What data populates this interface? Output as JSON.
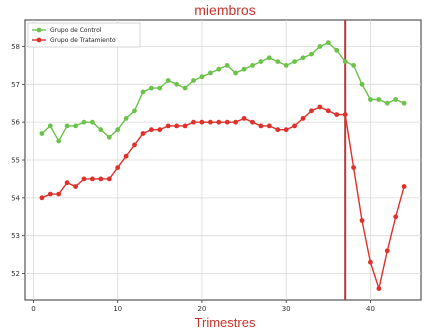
{
  "chart_data": {
    "type": "line",
    "title": "miembros",
    "xlabel": "Trimestres",
    "ylabel": "",
    "xlim": [
      -1,
      46
    ],
    "ylim": [
      51.3,
      58.7
    ],
    "xticks": [
      0,
      10,
      20,
      30,
      40
    ],
    "xtick_labels": [
      "0",
      "10",
      "20",
      "30",
      "40"
    ],
    "yticks": [
      52,
      53,
      54,
      55,
      56,
      57,
      58
    ],
    "ytick_labels": [
      "52",
      "53",
      "54",
      "55",
      "56",
      "57",
      "58"
    ],
    "grid": true,
    "legend": "top-left",
    "vline": {
      "x": 37,
      "color": "#b53a3a"
    },
    "series": [
      {
        "name": "Grupo de Control",
        "color": "#6cc24a",
        "x": [
          1,
          2,
          3,
          4,
          5,
          6,
          7,
          8,
          9,
          10,
          11,
          12,
          13,
          14,
          15,
          16,
          17,
          18,
          19,
          20,
          21,
          22,
          23,
          24,
          25,
          26,
          27,
          28,
          29,
          30,
          31,
          32,
          33,
          34,
          35,
          36,
          37,
          38,
          39,
          40,
          41,
          42,
          43,
          44
        ],
        "values": [
          55.7,
          55.9,
          55.5,
          55.9,
          55.9,
          56.0,
          56.0,
          55.8,
          55.6,
          55.8,
          56.1,
          56.3,
          56.8,
          56.9,
          56.9,
          57.1,
          57.0,
          56.9,
          57.1,
          57.2,
          57.3,
          57.4,
          57.5,
          57.3,
          57.4,
          57.5,
          57.6,
          57.7,
          57.6,
          57.5,
          57.6,
          57.7,
          57.8,
          58.0,
          58.1,
          57.9,
          57.6,
          57.5,
          57.0,
          56.6,
          56.6,
          56.5,
          56.6,
          56.5
        ]
      },
      {
        "name": "Grupo de Tratamiento",
        "color": "#e0302a",
        "x": [
          1,
          2,
          3,
          4,
          5,
          6,
          7,
          8,
          9,
          10,
          11,
          12,
          13,
          14,
          15,
          16,
          17,
          18,
          19,
          20,
          21,
          22,
          23,
          24,
          25,
          26,
          27,
          28,
          29,
          30,
          31,
          32,
          33,
          34,
          35,
          36,
          37,
          38,
          39,
          40,
          41,
          42,
          43,
          44
        ],
        "values": [
          54.0,
          54.1,
          54.1,
          54.4,
          54.3,
          54.5,
          54.5,
          54.5,
          54.5,
          54.8,
          55.1,
          55.4,
          55.7,
          55.8,
          55.8,
          55.9,
          55.9,
          55.9,
          56.0,
          56.0,
          56.0,
          56.0,
          56.0,
          56.0,
          56.1,
          56.0,
          55.9,
          55.9,
          55.8,
          55.8,
          55.9,
          56.1,
          56.3,
          56.4,
          56.3,
          56.2,
          56.2,
          54.8,
          53.4,
          52.3,
          51.6,
          52.6,
          53.5,
          54.3
        ]
      }
    ]
  }
}
